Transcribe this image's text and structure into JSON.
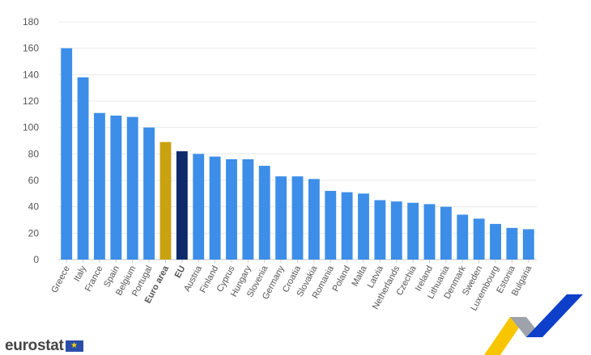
{
  "chart_data": {
    "type": "bar",
    "title": "",
    "xlabel": "",
    "ylabel": "",
    "ylim": [
      0,
      180
    ],
    "yticks": [
      0,
      20,
      40,
      60,
      80,
      100,
      120,
      140,
      160,
      180
    ],
    "grid": true,
    "categories": [
      "Greece",
      "Italy",
      "France",
      "Spain",
      "Belgium",
      "Portugal",
      "Euro area",
      "EU",
      "Austria",
      "Finland",
      "Cyprus",
      "Hungary",
      "Slovenia",
      "Germany",
      "Croatia",
      "Slovakia",
      "Romania",
      "Poland",
      "Malta",
      "Latvia",
      "Netherlands",
      "Czechia",
      "Ireland",
      "Lithuania",
      "Denmark",
      "Sweden",
      "Luxembourg",
      "Estonia",
      "Bulgaria"
    ],
    "values": [
      160,
      138,
      111,
      109,
      108,
      100,
      89,
      82,
      80,
      78,
      76,
      76,
      71,
      63,
      63,
      61,
      52,
      51,
      50,
      45,
      44,
      43,
      42,
      40,
      34,
      31,
      27,
      24,
      23
    ],
    "bold_categories": [
      "Euro area",
      "EU"
    ],
    "colors": {
      "default": "#3d8ee8",
      "Euro area": "#c9a20f",
      "EU": "#0e2a6b"
    }
  },
  "brand": {
    "logo_text": "eurostat",
    "flag_icon": "eu-flag-icon",
    "mark_colors": [
      "#f7c600",
      "#9ea3ab",
      "#0e3fcb"
    ]
  }
}
